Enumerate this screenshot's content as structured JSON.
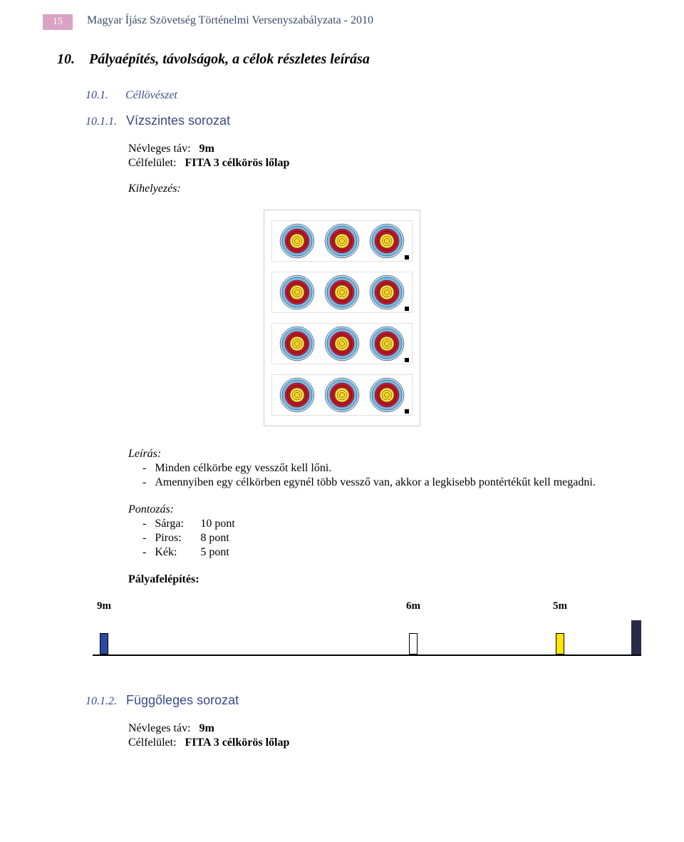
{
  "header": {
    "page_number": "15",
    "title": "Magyar Íjász Szövetség Történelmi Versenyszabályzata - 2010"
  },
  "section": {
    "number": "10.",
    "title": "Pályaépítés, távolságok, a célok részletes leírása"
  },
  "sub1": {
    "number": "10.1.",
    "title": "Céllövészet"
  },
  "sub2": {
    "number": "10.1.1.",
    "title": "Vízszintes sorozat"
  },
  "spec": {
    "dist_label": "Névleges táv:",
    "dist_value": "9m",
    "surf_label": "Célfelület:",
    "surf_value": "FITA 3 célkörös lőlap",
    "placement_label": "Kihelyezés:"
  },
  "target_colors": {
    "outer1": "#a7d2f0",
    "outer2": "#7bb9e6",
    "ring1": "#cf1c2f",
    "ring2": "#b31826",
    "center1": "#ffe64a",
    "center2": "#f7d42a",
    "bull": "#f7d42a"
  },
  "desc": {
    "heading": "Leírás:",
    "item1": "Minden célkörbe egy vesszőt kell lőni.",
    "item2": "Amennyiben egy célkörben egynél több vessző van, akkor a legkisebb pontértékűt kell megadni."
  },
  "scoring": {
    "heading": "Pontozás:",
    "i1_label": "Sárga:",
    "i1_value": "10 pont",
    "i2_label": "Piros:",
    "i2_value": "8 pont",
    "i3_label": "Kék:",
    "i3_value": "5 pont"
  },
  "field": {
    "heading": "Pályafelépítés:",
    "d1": "9m",
    "d2": "6m",
    "d3": "5m",
    "post_colors": {
      "p1": "#2a4aa0",
      "p2": "#ffffff",
      "p3": "#ffe600"
    }
  },
  "sub3": {
    "number": "10.1.2.",
    "title": "Függőleges sorozat"
  },
  "spec2": {
    "dist_label": "Névleges táv:",
    "dist_value": "9m",
    "surf_label": "Célfelület:",
    "surf_value": "FITA 3 célkörös lőlap"
  }
}
